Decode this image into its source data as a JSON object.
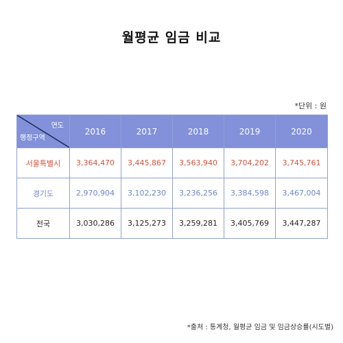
{
  "title": "월평균 임금 비교",
  "unit_note": "*단위 : 원",
  "table": {
    "corner_top": "연도",
    "corner_bottom": "행정구역",
    "years": [
      "2016",
      "2017",
      "2018",
      "2019",
      "2020"
    ],
    "rows": [
      {
        "region": "서울특별시",
        "values": [
          "3,364,470",
          "3,445,867",
          "3,563,940",
          "3,704,202",
          "3,745,761"
        ]
      },
      {
        "region": "경기도",
        "values": [
          "2,970,904",
          "3,102,230",
          "3,236,256",
          "3,384,598",
          "3,467,004"
        ]
      },
      {
        "region": "전국",
        "values": [
          "3,030,286",
          "3,125,273",
          "3,259,281",
          "3,405,769",
          "3,447,287"
        ]
      }
    ]
  },
  "colors": {
    "header_bg": "#8291d9",
    "seoul_text": "#d0533c",
    "gyeonggi_text": "#6f86c8",
    "total_text": "#222222",
    "border": "#8fa0d4"
  },
  "source_note": "*출처 : 통계청, 월평균 임금 및 임금상승률(시도별)"
}
